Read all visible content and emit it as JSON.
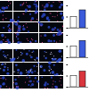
{
  "chart_data": [
    {
      "type": "bar",
      "categories": [
        null,
        null
      ],
      "values": [
        1.0,
        1.6
      ],
      "colors": [
        "#ffffff",
        "#3b5bdb"
      ],
      "ylim": [
        0,
        2
      ],
      "yticks": [
        0,
        1,
        2
      ],
      "tick_labels": false
    },
    {
      "type": "bar",
      "categories": [
        null,
        null
      ],
      "values": [
        1.0,
        1.5
      ],
      "colors": [
        "#ffffff",
        "#3b5bdb"
      ],
      "ylim": [
        0,
        2
      ],
      "yticks": [
        0,
        1,
        2
      ],
      "tick_labels": false
    },
    {
      "type": "bar",
      "categories": [
        null,
        null
      ],
      "values": [
        1.0,
        1.4
      ],
      "colors": [
        "#ffffff",
        "#d9363e"
      ],
      "ylim": [
        0,
        2
      ],
      "yticks": [
        0,
        1,
        2
      ],
      "tick_labels": false
    }
  ]
}
